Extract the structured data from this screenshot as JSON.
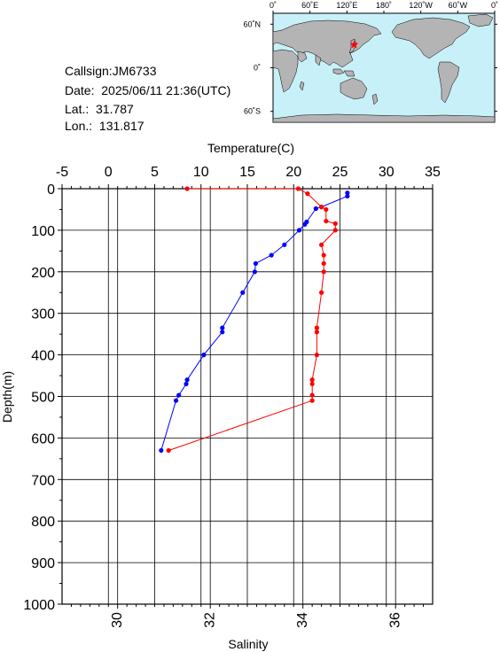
{
  "info": {
    "callsign": "Callsign:JM6733",
    "date": "Date:  2025/06/11 21:36(UTC)",
    "lat": "Lat.:  31.787",
    "lon": "Lon.:  131.817"
  },
  "map": {
    "lon_labels": [
      "0˚",
      "60˚E",
      "120˚E",
      "180˚",
      "120˚W",
      "60˚W",
      "0˚"
    ],
    "lat_labels": [
      "60˚N",
      "0˚",
      "60˚S"
    ],
    "ocean_color": "#c8f0f8",
    "land_color": "#b4b4b4",
    "marker_color": "#ff0000",
    "marker": {
      "lon": 131.817,
      "lat": 31.787
    }
  },
  "chart_data": {
    "type": "line",
    "title": "",
    "top_axis": {
      "label": "Temperature(C)",
      "range": [
        -5,
        35
      ],
      "ticks": [
        -5,
        0,
        5,
        10,
        15,
        20,
        25,
        30,
        35
      ],
      "tick_labels": [
        "-5",
        "0",
        "5",
        "10",
        "15",
        "20",
        "25",
        "30",
        "35"
      ]
    },
    "bottom_axis": {
      "label": "Salinity",
      "range": [
        28.8,
        36.8
      ],
      "ticks": [
        30,
        32,
        34,
        36
      ],
      "tick_labels": [
        "30",
        "32",
        "34",
        "36"
      ]
    },
    "y_axis": {
      "label": "Depth(m)",
      "range": [
        0,
        1000
      ],
      "inverted": true,
      "ticks": [
        0,
        100,
        200,
        300,
        400,
        500,
        600,
        700,
        800,
        900,
        1000
      ],
      "tick_labels": [
        "0",
        "100",
        "200",
        "300",
        "400",
        "500",
        "600",
        "700",
        "800",
        "900",
        "1000"
      ]
    },
    "grid": true,
    "series": [
      {
        "name": "",
        "quantity": "temperature",
        "axis": "top",
        "color": "#0000ff",
        "points": [
          {
            "value": 25.8,
            "depth": 10
          },
          {
            "value": 25.8,
            "depth": 18
          },
          {
            "value": 23.0,
            "depth": 44
          },
          {
            "value": 22.4,
            "depth": 48
          },
          {
            "value": 21.4,
            "depth": 80
          },
          {
            "value": 21.2,
            "depth": 86
          },
          {
            "value": 20.6,
            "depth": 100
          },
          {
            "value": 19.0,
            "depth": 135
          },
          {
            "value": 17.6,
            "depth": 160
          },
          {
            "value": 15.9,
            "depth": 180
          },
          {
            "value": 15.8,
            "depth": 200
          },
          {
            "value": 14.5,
            "depth": 250
          },
          {
            "value": 12.3,
            "depth": 335
          },
          {
            "value": 12.3,
            "depth": 345
          },
          {
            "value": 10.3,
            "depth": 400
          },
          {
            "value": 8.5,
            "depth": 460
          },
          {
            "value": 8.4,
            "depth": 470
          },
          {
            "value": 7.6,
            "depth": 497
          },
          {
            "value": 7.3,
            "depth": 510
          },
          {
            "value": 5.7,
            "depth": 630
          }
        ]
      },
      {
        "name": "",
        "quantity": "salinity",
        "axis": "bottom",
        "color": "#ff0000",
        "points": [
          {
            "value": 31.5,
            "depth": 0
          },
          {
            "value": 33.9,
            "depth": 0
          },
          {
            "value": 34.1,
            "depth": 12
          },
          {
            "value": 34.4,
            "depth": 44
          },
          {
            "value": 34.5,
            "depth": 50
          },
          {
            "value": 34.5,
            "depth": 78
          },
          {
            "value": 34.7,
            "depth": 84
          },
          {
            "value": 34.7,
            "depth": 100
          },
          {
            "value": 34.4,
            "depth": 135
          },
          {
            "value": 34.45,
            "depth": 160
          },
          {
            "value": 34.45,
            "depth": 180
          },
          {
            "value": 34.45,
            "depth": 200
          },
          {
            "value": 34.4,
            "depth": 250
          },
          {
            "value": 34.3,
            "depth": 335
          },
          {
            "value": 34.3,
            "depth": 345
          },
          {
            "value": 34.3,
            "depth": 400
          },
          {
            "value": 34.2,
            "depth": 460
          },
          {
            "value": 34.2,
            "depth": 470
          },
          {
            "value": 34.2,
            "depth": 497
          },
          {
            "value": 34.2,
            "depth": 510
          },
          {
            "value": 31.1,
            "depth": 630
          }
        ]
      }
    ]
  }
}
